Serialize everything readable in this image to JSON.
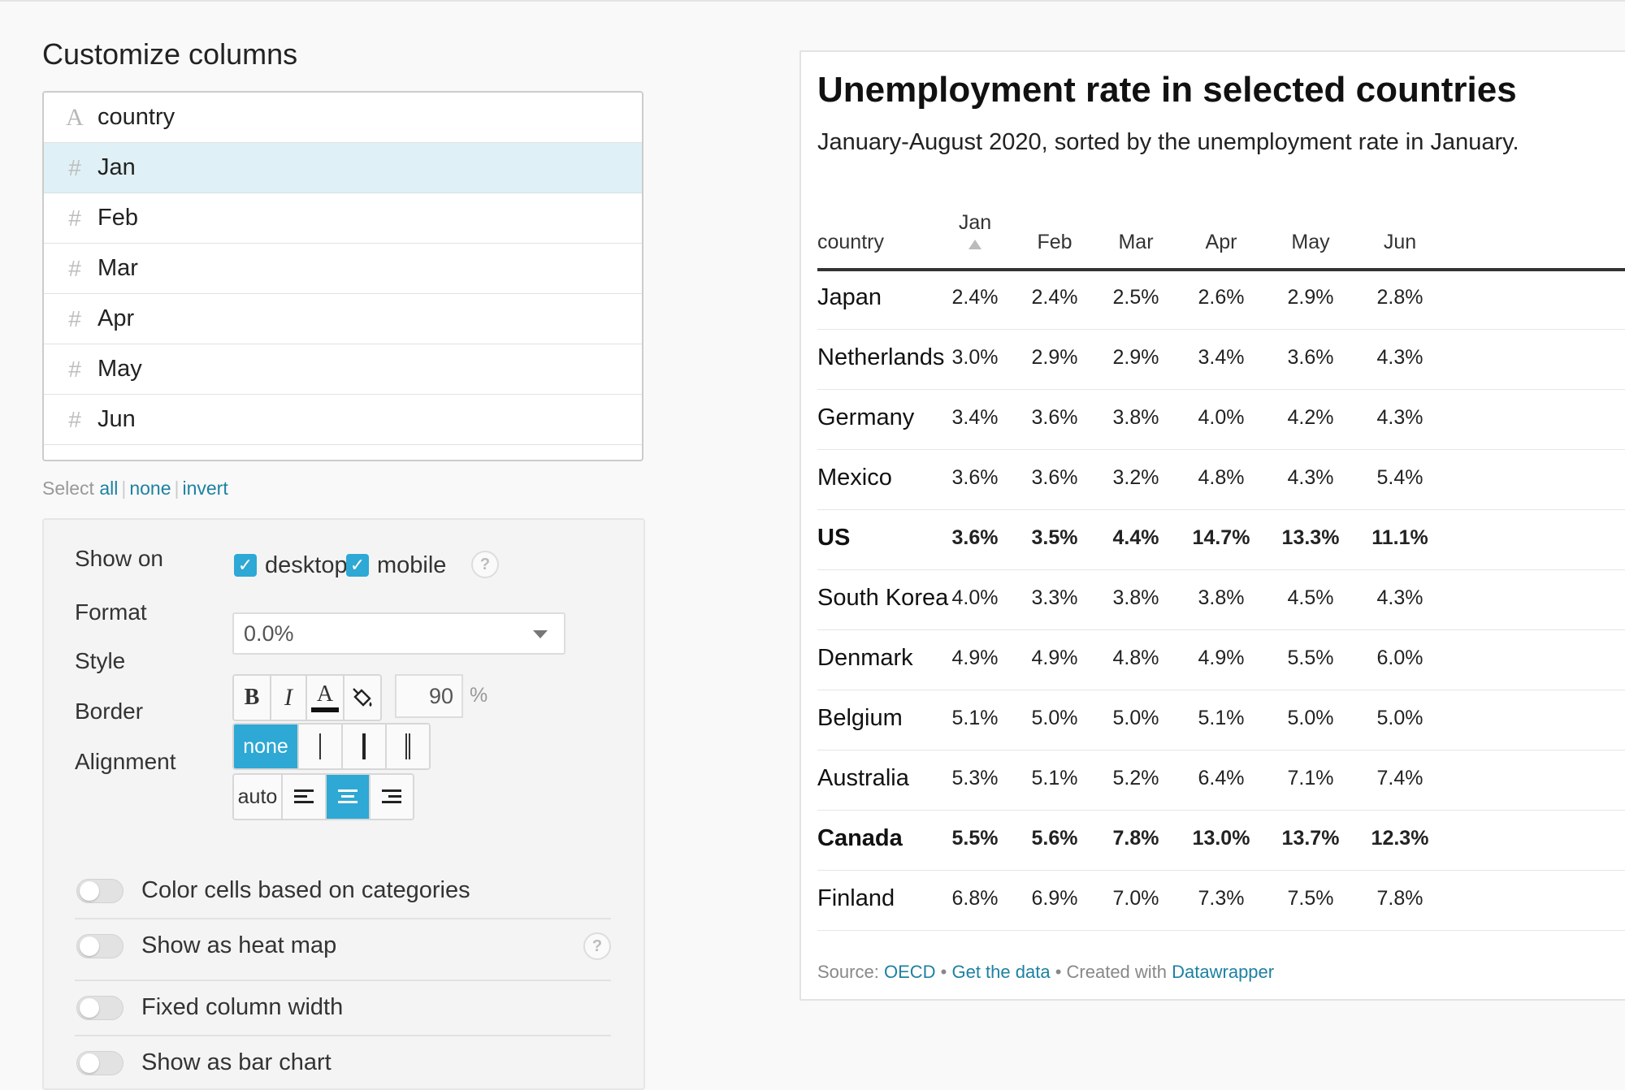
{
  "left": {
    "heading": "Customize columns",
    "columns": [
      {
        "icon": "A",
        "label": "country",
        "type": "text",
        "selected": false
      },
      {
        "icon": "#",
        "label": "Jan",
        "type": "number",
        "selected": true
      },
      {
        "icon": "#",
        "label": "Feb",
        "type": "number",
        "selected": false
      },
      {
        "icon": "#",
        "label": "Mar",
        "type": "number",
        "selected": false
      },
      {
        "icon": "#",
        "label": "Apr",
        "type": "number",
        "selected": false
      },
      {
        "icon": "#",
        "label": "May",
        "type": "number",
        "selected": false
      },
      {
        "icon": "#",
        "label": "Jun",
        "type": "number",
        "selected": false
      }
    ],
    "select": {
      "prefix": "Select",
      "all": "all",
      "none": "none",
      "invert": "invert",
      "sep": "|"
    },
    "options": {
      "show_on_label": "Show on",
      "desktop_label": "desktop",
      "mobile_label": "mobile",
      "help": "?",
      "format_label": "Format",
      "format_value": "0.0%",
      "style_label": "Style",
      "style_bold": "B",
      "style_italic": "I",
      "style_color": "A",
      "style_width": "90",
      "style_width_unit": "%",
      "border_label": "Border",
      "border_none": "none",
      "alignment_label": "Alignment",
      "align_auto": "auto",
      "toggle_color_cells": "Color cells based on categories",
      "toggle_heatmap": "Show as heat map",
      "toggle_fixed_width": "Fixed column width",
      "toggle_bar_chart": "Show as bar chart"
    }
  },
  "table": {
    "title": "Unemployment rate in selected countries",
    "subtitle": "January-August 2020, sorted by the unemployment rate in January.",
    "headers": [
      "country",
      "Jan",
      "Feb",
      "Mar",
      "Apr",
      "May",
      "Jun"
    ],
    "rows": [
      {
        "country": "Japan",
        "values": [
          "2.4%",
          "2.4%",
          "2.5%",
          "2.6%",
          "2.9%",
          "2.8%"
        ],
        "bold": false
      },
      {
        "country": "Netherlands",
        "values": [
          "3.0%",
          "2.9%",
          "2.9%",
          "3.4%",
          "3.6%",
          "4.3%"
        ],
        "bold": false
      },
      {
        "country": "Germany",
        "values": [
          "3.4%",
          "3.6%",
          "3.8%",
          "4.0%",
          "4.2%",
          "4.3%"
        ],
        "bold": false
      },
      {
        "country": "Mexico",
        "values": [
          "3.6%",
          "3.6%",
          "3.2%",
          "4.8%",
          "4.3%",
          "5.4%"
        ],
        "bold": false
      },
      {
        "country": "US",
        "values": [
          "3.6%",
          "3.5%",
          "4.4%",
          "14.7%",
          "13.3%",
          "11.1%"
        ],
        "bold": true
      },
      {
        "country": "South Korea",
        "values": [
          "4.0%",
          "3.3%",
          "3.8%",
          "3.8%",
          "4.5%",
          "4.3%"
        ],
        "bold": false
      },
      {
        "country": "Denmark",
        "values": [
          "4.9%",
          "4.9%",
          "4.8%",
          "4.9%",
          "5.5%",
          "6.0%"
        ],
        "bold": false
      },
      {
        "country": "Belgium",
        "values": [
          "5.1%",
          "5.0%",
          "5.0%",
          "5.1%",
          "5.0%",
          "5.0%"
        ],
        "bold": false
      },
      {
        "country": "Australia",
        "values": [
          "5.3%",
          "5.1%",
          "5.2%",
          "6.4%",
          "7.1%",
          "7.4%"
        ],
        "bold": false
      },
      {
        "country": "Canada",
        "values": [
          "5.5%",
          "5.6%",
          "7.8%",
          "13.0%",
          "13.7%",
          "12.3%"
        ],
        "bold": true
      },
      {
        "country": "Finland",
        "values": [
          "6.8%",
          "6.9%",
          "7.0%",
          "7.3%",
          "7.5%",
          "7.8%"
        ],
        "bold": false
      }
    ],
    "source": {
      "prefix": "Source:",
      "source_name": "OECD",
      "dot": "•",
      "get_data": "Get the data",
      "created_with": "Created with",
      "tool": "Datawrapper"
    }
  }
}
